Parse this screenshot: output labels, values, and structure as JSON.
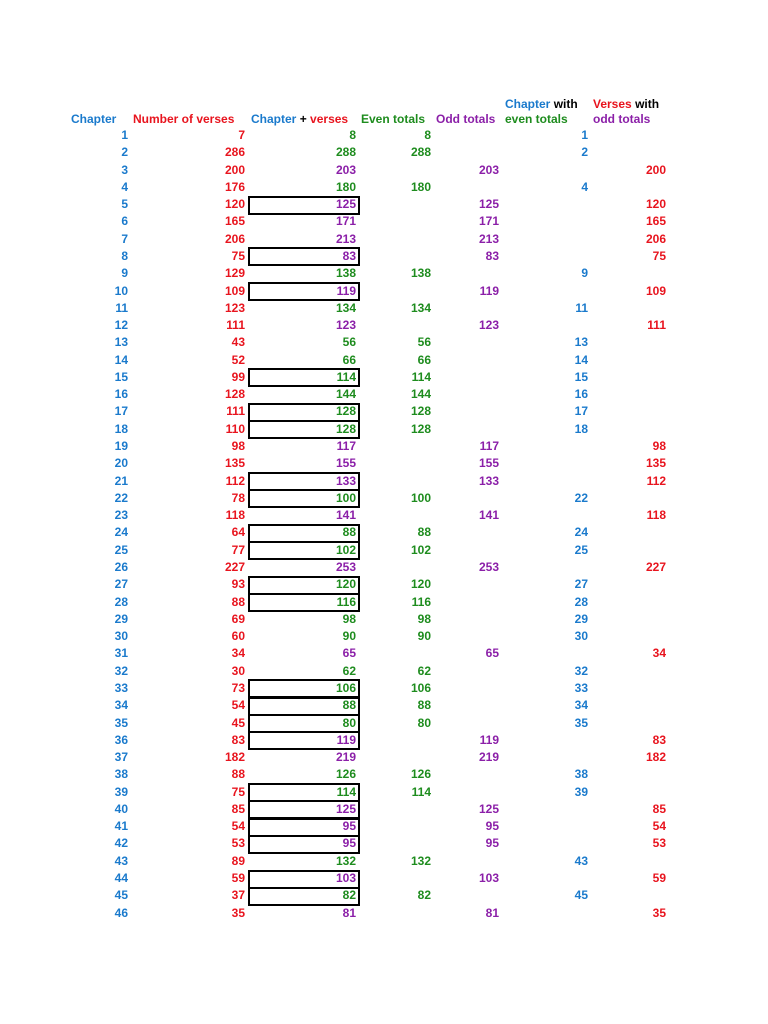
{
  "colors": {
    "blue": "#1a7acc",
    "red": "#e8141e",
    "purple": "#8b1fa8",
    "green": "#1e8c1e",
    "black": "#000000"
  },
  "headers": {
    "chapter": "Chapter",
    "number_of_verses": "Number of verses",
    "chapter_word": "Chapter",
    "plus": "+",
    "verses_word": "verses",
    "even_totals": "Even totals",
    "odd_totals": "Odd totals",
    "chapter_with_chapter": "Chapter",
    "chapter_with_with": "with",
    "chapter_with_line2": "even totals",
    "verses_with_verses": "Verses",
    "verses_with_with": "with",
    "verses_with_line2": "odd totals"
  },
  "rows": [
    {
      "ch": "1",
      "v": "7",
      "sum": "8",
      "even": "8",
      "odd": "",
      "chEven": "1",
      "vOdd": "",
      "boxed": false
    },
    {
      "ch": "2",
      "v": "286",
      "sum": "288",
      "even": "288",
      "odd": "",
      "chEven": "2",
      "vOdd": "",
      "boxed": false
    },
    {
      "ch": "3",
      "v": "200",
      "sum": "203",
      "even": "",
      "odd": "203",
      "chEven": "",
      "vOdd": "200",
      "boxed": false
    },
    {
      "ch": "4",
      "v": "176",
      "sum": "180",
      "even": "180",
      "odd": "",
      "chEven": "4",
      "vOdd": "",
      "boxed": false
    },
    {
      "ch": "5",
      "v": "120",
      "sum": "125",
      "even": "",
      "odd": "125",
      "chEven": "",
      "vOdd": "120",
      "boxed": true
    },
    {
      "ch": "6",
      "v": "165",
      "sum": "171",
      "even": "",
      "odd": "171",
      "chEven": "",
      "vOdd": "165",
      "boxed": false
    },
    {
      "ch": "7",
      "v": "206",
      "sum": "213",
      "even": "",
      "odd": "213",
      "chEven": "",
      "vOdd": "206",
      "boxed": false
    },
    {
      "ch": "8",
      "v": "75",
      "sum": "83",
      "even": "",
      "odd": "83",
      "chEven": "",
      "vOdd": "75",
      "boxed": true
    },
    {
      "ch": "9",
      "v": "129",
      "sum": "138",
      "even": "138",
      "odd": "",
      "chEven": "9",
      "vOdd": "",
      "boxed": false
    },
    {
      "ch": "10",
      "v": "109",
      "sum": "119",
      "even": "",
      "odd": "119",
      "chEven": "",
      "vOdd": "109",
      "boxed": true
    },
    {
      "ch": "11",
      "v": "123",
      "sum": "134",
      "even": "134",
      "odd": "",
      "chEven": "11",
      "vOdd": "",
      "boxed": false
    },
    {
      "ch": "12",
      "v": "111",
      "sum": "123",
      "even": "",
      "odd": "123",
      "chEven": "",
      "vOdd": "111",
      "boxed": false
    },
    {
      "ch": "13",
      "v": "43",
      "sum": "56",
      "even": "56",
      "odd": "",
      "chEven": "13",
      "vOdd": "",
      "boxed": false
    },
    {
      "ch": "14",
      "v": "52",
      "sum": "66",
      "even": "66",
      "odd": "",
      "chEven": "14",
      "vOdd": "",
      "boxed": false
    },
    {
      "ch": "15",
      "v": "99",
      "sum": "114",
      "even": "114",
      "odd": "",
      "chEven": "15",
      "vOdd": "",
      "boxed": true
    },
    {
      "ch": "16",
      "v": "128",
      "sum": "144",
      "even": "144",
      "odd": "",
      "chEven": "16",
      "vOdd": "",
      "boxed": false
    },
    {
      "ch": "17",
      "v": "111",
      "sum": "128",
      "even": "128",
      "odd": "",
      "chEven": "17",
      "vOdd": "",
      "boxed": true
    },
    {
      "ch": "18",
      "v": "110",
      "sum": "128",
      "even": "128",
      "odd": "",
      "chEven": "18",
      "vOdd": "",
      "boxed": true
    },
    {
      "ch": "19",
      "v": "98",
      "sum": "117",
      "even": "",
      "odd": "117",
      "chEven": "",
      "vOdd": "98",
      "boxed": false
    },
    {
      "ch": "20",
      "v": "135",
      "sum": "155",
      "even": "",
      "odd": "155",
      "chEven": "",
      "vOdd": "135",
      "boxed": false
    },
    {
      "ch": "21",
      "v": "112",
      "sum": "133",
      "even": "",
      "odd": "133",
      "chEven": "",
      "vOdd": "112",
      "boxed": true
    },
    {
      "ch": "22",
      "v": "78",
      "sum": "100",
      "even": "100",
      "odd": "",
      "chEven": "22",
      "vOdd": "",
      "boxed": true
    },
    {
      "ch": "23",
      "v": "118",
      "sum": "141",
      "even": "",
      "odd": "141",
      "chEven": "",
      "vOdd": "118",
      "boxed": false
    },
    {
      "ch": "24",
      "v": "64",
      "sum": "88",
      "even": "88",
      "odd": "",
      "chEven": "24",
      "vOdd": "",
      "boxed": true
    },
    {
      "ch": "25",
      "v": "77",
      "sum": "102",
      "even": "102",
      "odd": "",
      "chEven": "25",
      "vOdd": "",
      "boxed": true
    },
    {
      "ch": "26",
      "v": "227",
      "sum": "253",
      "even": "",
      "odd": "253",
      "chEven": "",
      "vOdd": "227",
      "boxed": false
    },
    {
      "ch": "27",
      "v": "93",
      "sum": "120",
      "even": "120",
      "odd": "",
      "chEven": "27",
      "vOdd": "",
      "boxed": true
    },
    {
      "ch": "28",
      "v": "88",
      "sum": "116",
      "even": "116",
      "odd": "",
      "chEven": "28",
      "vOdd": "",
      "boxed": true
    },
    {
      "ch": "29",
      "v": "69",
      "sum": "98",
      "even": "98",
      "odd": "",
      "chEven": "29",
      "vOdd": "",
      "boxed": false
    },
    {
      "ch": "30",
      "v": "60",
      "sum": "90",
      "even": "90",
      "odd": "",
      "chEven": "30",
      "vOdd": "",
      "boxed": false
    },
    {
      "ch": "31",
      "v": "34",
      "sum": "65",
      "even": "",
      "odd": "65",
      "chEven": "",
      "vOdd": "34",
      "boxed": false
    },
    {
      "ch": "32",
      "v": "30",
      "sum": "62",
      "even": "62",
      "odd": "",
      "chEven": "32",
      "vOdd": "",
      "boxed": false
    },
    {
      "ch": "33",
      "v": "73",
      "sum": "106",
      "even": "106",
      "odd": "",
      "chEven": "33",
      "vOdd": "",
      "boxed": true
    },
    {
      "ch": "34",
      "v": "54",
      "sum": "88",
      "even": "88",
      "odd": "",
      "chEven": "34",
      "vOdd": "",
      "boxed": true
    },
    {
      "ch": "35",
      "v": "45",
      "sum": "80",
      "even": "80",
      "odd": "",
      "chEven": "35",
      "vOdd": "",
      "boxed": true
    },
    {
      "ch": "36",
      "v": "83",
      "sum": "119",
      "even": "",
      "odd": "119",
      "chEven": "",
      "vOdd": "83",
      "boxed": true
    },
    {
      "ch": "37",
      "v": "182",
      "sum": "219",
      "even": "",
      "odd": "219",
      "chEven": "",
      "vOdd": "182",
      "boxed": false
    },
    {
      "ch": "38",
      "v": "88",
      "sum": "126",
      "even": "126",
      "odd": "",
      "chEven": "38",
      "vOdd": "",
      "boxed": false
    },
    {
      "ch": "39",
      "v": "75",
      "sum": "114",
      "even": "114",
      "odd": "",
      "chEven": "39",
      "vOdd": "",
      "boxed": true
    },
    {
      "ch": "40",
      "v": "85",
      "sum": "125",
      "even": "",
      "odd": "125",
      "chEven": "",
      "vOdd": "85",
      "boxed": true
    },
    {
      "ch": "41",
      "v": "54",
      "sum": "95",
      "even": "",
      "odd": "95",
      "chEven": "",
      "vOdd": "54",
      "boxed": true
    },
    {
      "ch": "42",
      "v": "53",
      "sum": "95",
      "even": "",
      "odd": "95",
      "chEven": "",
      "vOdd": "53",
      "boxed": true
    },
    {
      "ch": "43",
      "v": "89",
      "sum": "132",
      "even": "132",
      "odd": "",
      "chEven": "43",
      "vOdd": "",
      "boxed": false
    },
    {
      "ch": "44",
      "v": "59",
      "sum": "103",
      "even": "",
      "odd": "103",
      "chEven": "",
      "vOdd": "59",
      "boxed": true
    },
    {
      "ch": "45",
      "v": "37",
      "sum": "82",
      "even": "82",
      "odd": "",
      "chEven": "45",
      "vOdd": "",
      "boxed": true
    },
    {
      "ch": "46",
      "v": "35",
      "sum": "81",
      "even": "",
      "odd": "81",
      "chEven": "",
      "vOdd": "35",
      "boxed": false
    }
  ]
}
